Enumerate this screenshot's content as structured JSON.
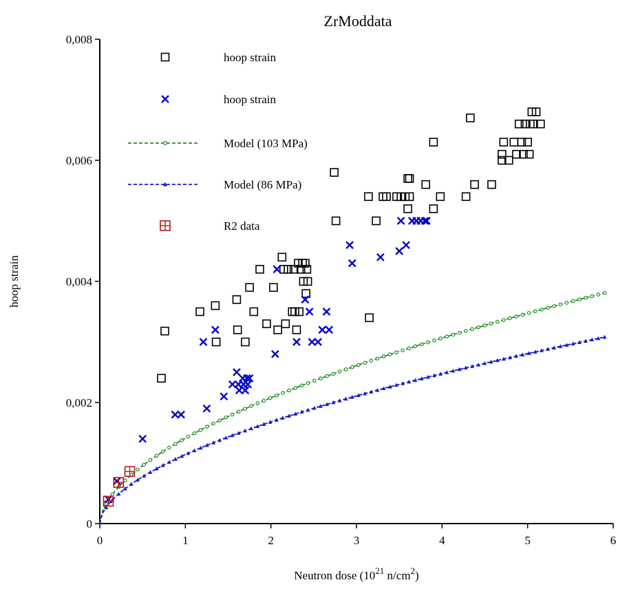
{
  "chart_data": {
    "type": "scatter",
    "title": "ZrModdata",
    "xlabel": "Neutron dose (10",
    "xlabel_exp": "21",
    "xlabel_mid": " n/cm",
    "xlabel_exp2": "2",
    "xlabel_end": ")",
    "ylabel": "hoop  strain",
    "xlim": [
      0,
      6
    ],
    "ylim": [
      0,
      0.008
    ],
    "xticks": [
      0,
      1,
      2,
      3,
      4,
      5,
      6
    ],
    "xtick_labels": [
      "0",
      "1",
      "2",
      "3",
      "4",
      "5",
      "6"
    ],
    "yticks": [
      0,
      0.002,
      0.004,
      0.006,
      0.008
    ],
    "ytick_labels": [
      "0",
      "0,002",
      "0,004",
      "0,006",
      "0,008"
    ],
    "legend_position": "top-left",
    "series": [
      {
        "name": "hoop  strain",
        "kind": "square",
        "color": "#000000",
        "points": [
          [
            0.72,
            0.0024
          ],
          [
            0.76,
            0.00318
          ],
          [
            1.17,
            0.0035
          ],
          [
            1.35,
            0.0036
          ],
          [
            1.36,
            0.003
          ],
          [
            1.6,
            0.0037
          ],
          [
            1.61,
            0.0032
          ],
          [
            1.7,
            0.003
          ],
          [
            1.75,
            0.0039
          ],
          [
            1.8,
            0.0035
          ],
          [
            1.87,
            0.0042
          ],
          [
            1.95,
            0.0033
          ],
          [
            2.03,
            0.0039
          ],
          [
            2.08,
            0.0032
          ],
          [
            2.13,
            0.0044
          ],
          [
            2.15,
            0.0042
          ],
          [
            2.17,
            0.0033
          ],
          [
            2.2,
            0.0042
          ],
          [
            2.25,
            0.0035
          ],
          [
            2.27,
            0.0042
          ],
          [
            2.28,
            0.0035
          ],
          [
            2.3,
            0.0032
          ],
          [
            2.32,
            0.0043
          ],
          [
            2.33,
            0.0035
          ],
          [
            2.35,
            0.0042
          ],
          [
            2.37,
            0.0043
          ],
          [
            2.38,
            0.004
          ],
          [
            2.4,
            0.0043
          ],
          [
            2.42,
            0.0042
          ],
          [
            2.43,
            0.004
          ],
          [
            2.41,
            0.0038
          ],
          [
            2.74,
            0.0058
          ],
          [
            2.76,
            0.005
          ],
          [
            3.15,
            0.0034
          ],
          [
            3.14,
            0.0054
          ],
          [
            3.23,
            0.005
          ],
          [
            3.31,
            0.0054
          ],
          [
            3.35,
            0.0054
          ],
          [
            3.47,
            0.0054
          ],
          [
            3.52,
            0.0054
          ],
          [
            3.57,
            0.0054
          ],
          [
            3.6,
            0.0052
          ],
          [
            3.62,
            0.0054
          ],
          [
            3.6,
            0.0057
          ],
          [
            3.62,
            0.0057
          ],
          [
            3.81,
            0.0056
          ],
          [
            3.9,
            0.0052
          ],
          [
            3.9,
            0.0063
          ],
          [
            3.98,
            0.0054
          ],
          [
            4.28,
            0.0054
          ],
          [
            4.33,
            0.0067
          ],
          [
            4.38,
            0.0056
          ],
          [
            4.58,
            0.0056
          ],
          [
            4.7,
            0.006
          ],
          [
            4.7,
            0.0061
          ],
          [
            4.72,
            0.0063
          ],
          [
            4.78,
            0.006
          ],
          [
            4.84,
            0.0063
          ],
          [
            4.87,
            0.0061
          ],
          [
            4.9,
            0.0066
          ],
          [
            4.93,
            0.0063
          ],
          [
            4.95,
            0.0061
          ],
          [
            4.97,
            0.0066
          ],
          [
            5.0,
            0.0063
          ],
          [
            5.02,
            0.0061
          ],
          [
            5.03,
            0.0066
          ],
          [
            5.05,
            0.0068
          ],
          [
            5.07,
            0.0066
          ],
          [
            5.1,
            0.0068
          ],
          [
            5.15,
            0.0066
          ]
        ]
      },
      {
        "name": "hoop  strain",
        "kind": "x",
        "color": "#0000cc",
        "points": [
          [
            0.1,
            0.0004
          ],
          [
            0.2,
            0.0007
          ],
          [
            0.5,
            0.0014
          ],
          [
            0.88,
            0.0018
          ],
          [
            0.95,
            0.0018
          ],
          [
            1.21,
            0.003
          ],
          [
            1.25,
            0.0019
          ],
          [
            1.35,
            0.0032
          ],
          [
            1.45,
            0.0021
          ],
          [
            1.55,
            0.0023
          ],
          [
            1.6,
            0.0025
          ],
          [
            1.62,
            0.0023
          ],
          [
            1.63,
            0.0022
          ],
          [
            1.67,
            0.0024
          ],
          [
            1.68,
            0.0023
          ],
          [
            1.7,
            0.0022
          ],
          [
            1.72,
            0.0024
          ],
          [
            1.73,
            0.0023
          ],
          [
            1.75,
            0.0024
          ],
          [
            2.05,
            0.0028
          ],
          [
            2.07,
            0.0042
          ],
          [
            2.3,
            0.003
          ],
          [
            2.4,
            0.0037
          ],
          [
            2.45,
            0.0035
          ],
          [
            2.48,
            0.003
          ],
          [
            2.55,
            0.003
          ],
          [
            2.6,
            0.0032
          ],
          [
            2.65,
            0.0035
          ],
          [
            2.68,
            0.0032
          ],
          [
            2.92,
            0.0046
          ],
          [
            2.95,
            0.0043
          ],
          [
            3.28,
            0.0044
          ],
          [
            3.5,
            0.0045
          ],
          [
            3.52,
            0.005
          ],
          [
            3.58,
            0.0046
          ],
          [
            3.65,
            0.005
          ],
          [
            3.7,
            0.005
          ],
          [
            3.75,
            0.005
          ],
          [
            3.8,
            0.005
          ],
          [
            3.82,
            0.005
          ]
        ]
      },
      {
        "name": "Model (103 MPa)",
        "kind": "model",
        "color": "#1a8c1a",
        "coef": 0.00141,
        "exponent": 0.56
      },
      {
        "name": "Model (86 MPa)",
        "kind": "model",
        "color": "#1a1ac8",
        "coef": 0.00114,
        "exponent": 0.56
      },
      {
        "name": "R2 data",
        "kind": "boxplus",
        "color": "#b31a1a",
        "points": [
          [
            0.1,
            0.00037
          ],
          [
            0.22,
            0.00068
          ],
          [
            0.35,
            0.00086
          ]
        ]
      }
    ]
  }
}
